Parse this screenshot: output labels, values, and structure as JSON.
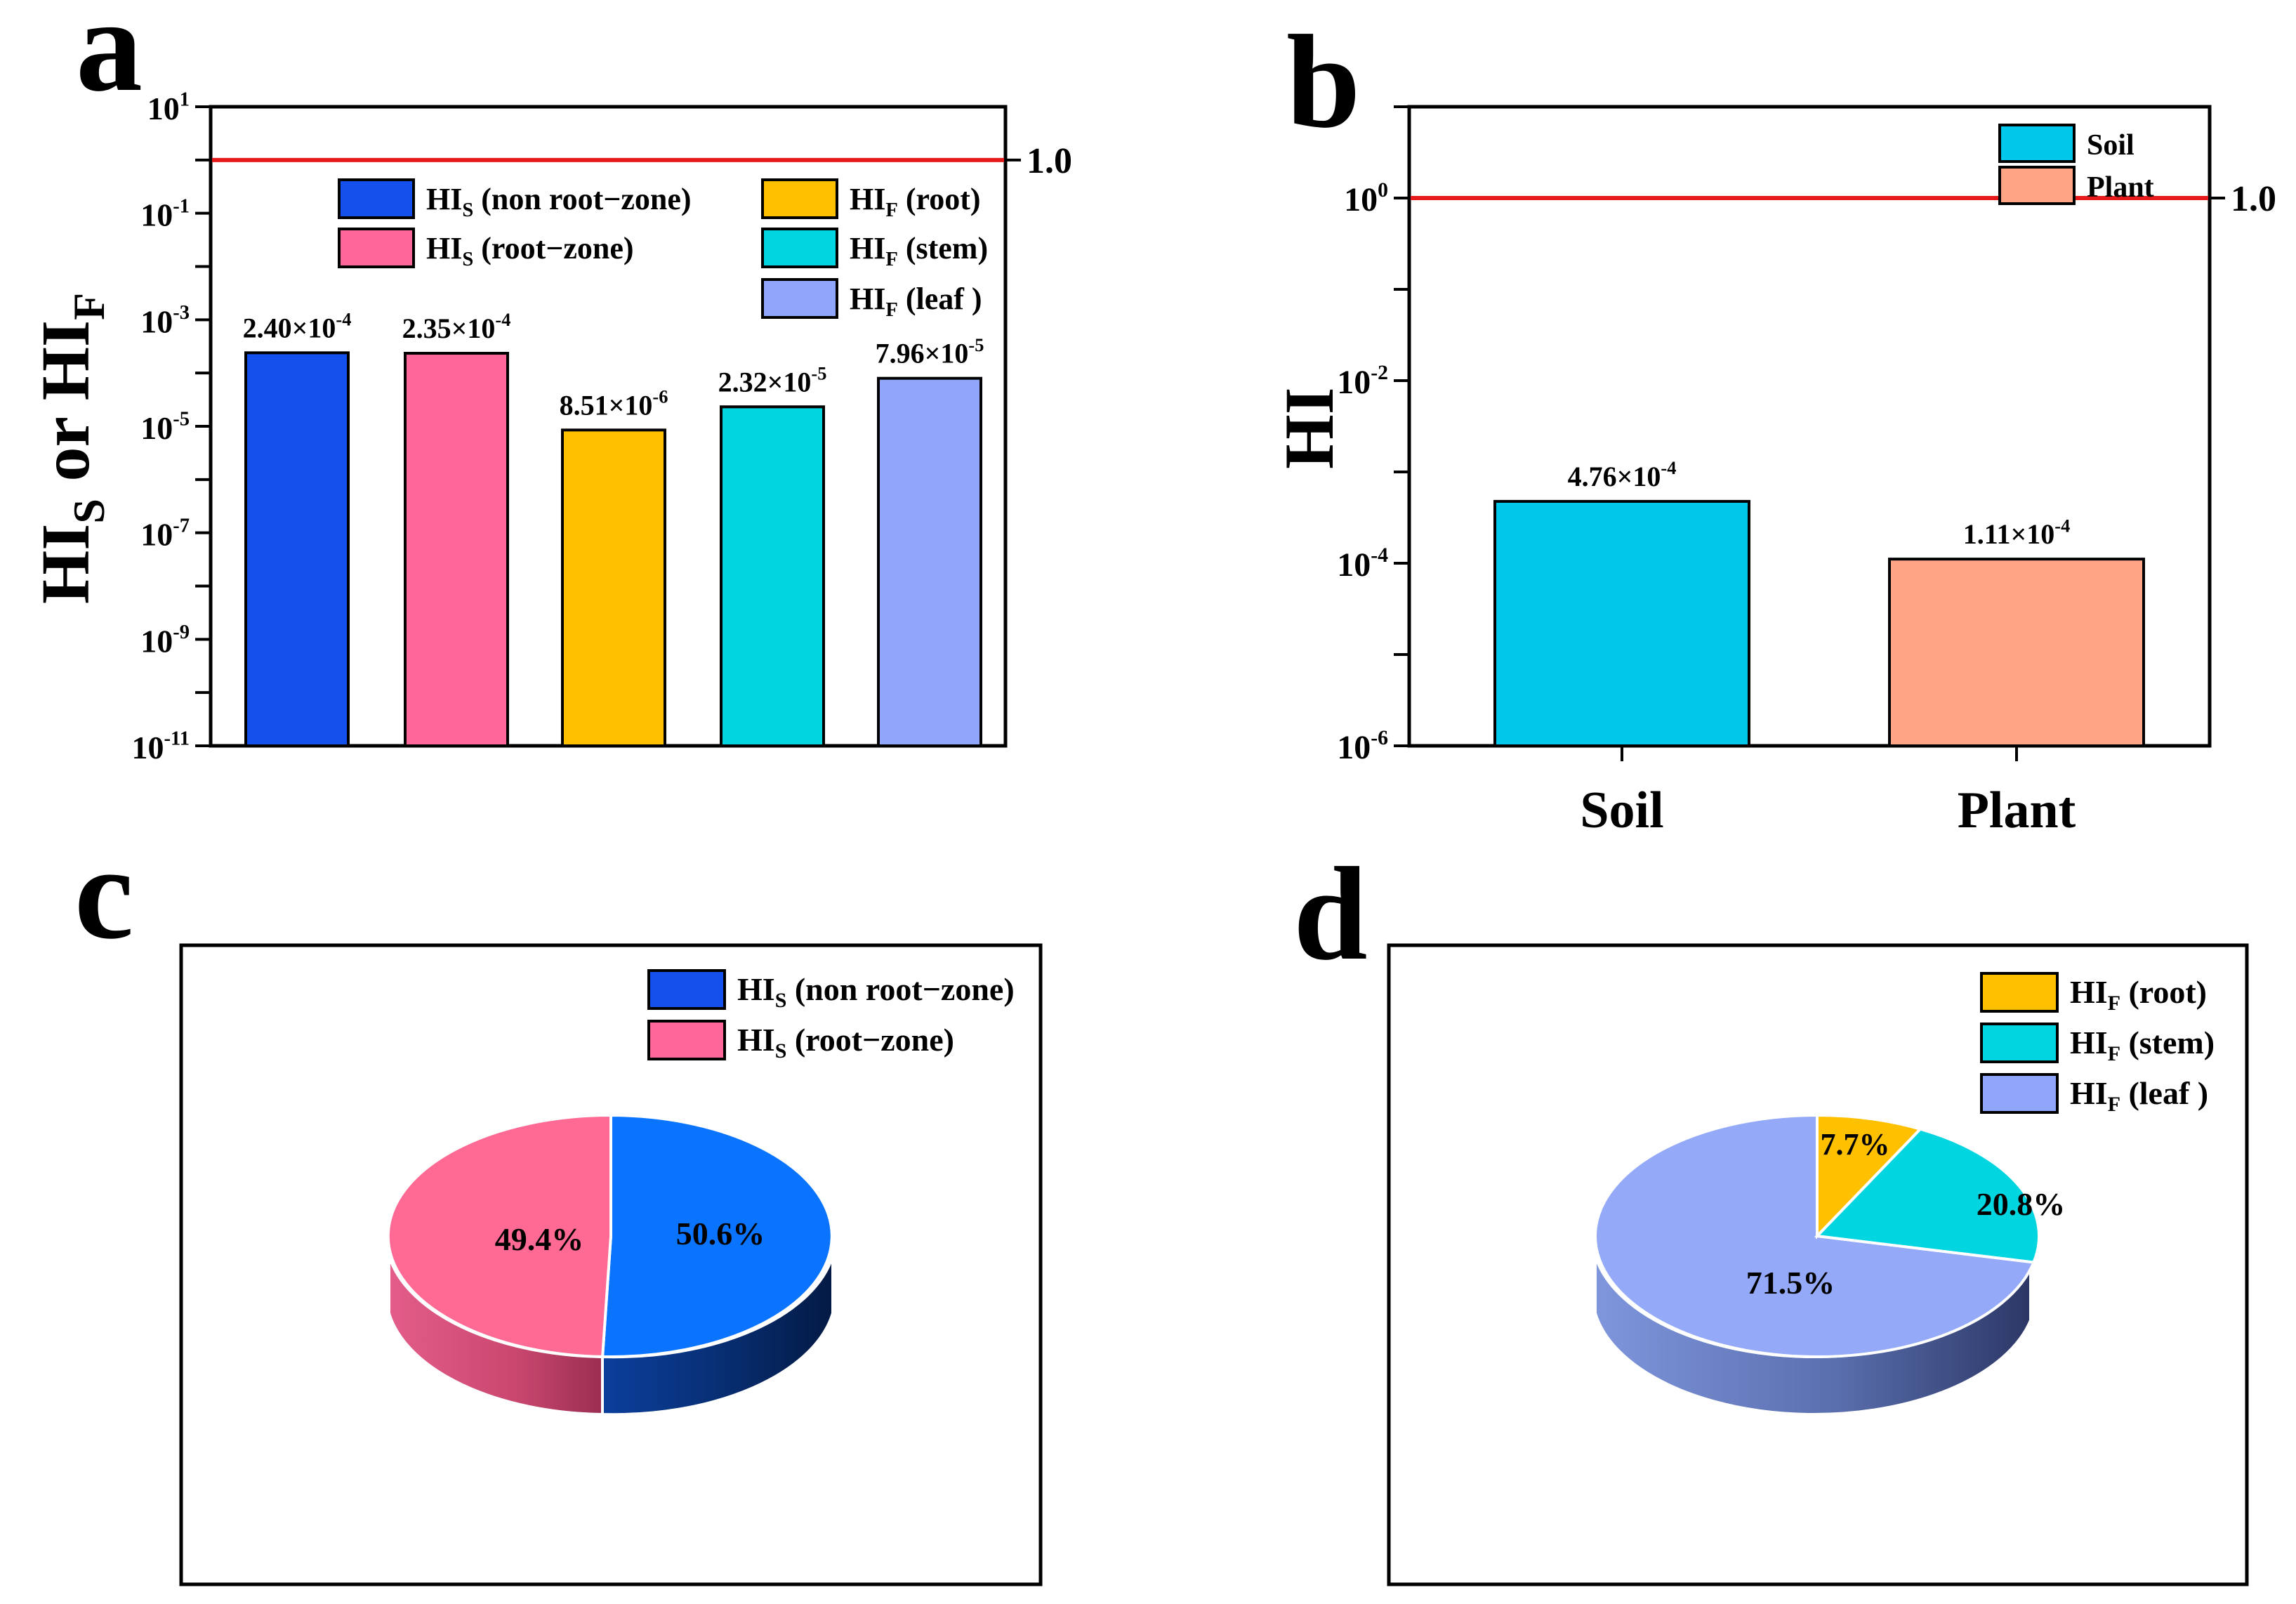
{
  "colors": {
    "hi_line": "#e51b1b",
    "hi_s_nonroot": "#1450ec",
    "hi_s_root": "#ff6699",
    "hi_f_root": "#ffc000",
    "hi_f_stem": "#00d5e0",
    "hi_f_leaf": "#8fa6fb",
    "soil": "#00c8ea",
    "plant": "#ffa586",
    "pie_nonroot": "#0a74ff",
    "pie_root": "#ff6a94",
    "pie_leaf_top": "#94aaf8"
  },
  "chart_data": [
    {
      "panel": "a",
      "type": "bar",
      "yscale": "log",
      "ylabel_main": "HI",
      "ylabel_sub1": "S",
      "ylabel_or": " or ",
      "ylabel_main2": "HI",
      "ylabel_sub2": "F",
      "ylim": [
        1e-11,
        10
      ],
      "yticks": [
        {
          "base": "10",
          "exp": "1"
        },
        {
          "base": "10",
          "exp": "-1"
        },
        {
          "base": "10",
          "exp": "-3"
        },
        {
          "base": "10",
          "exp": "-5"
        },
        {
          "base": "10",
          "exp": "-7"
        },
        {
          "base": "10",
          "exp": "-9"
        },
        {
          "base": "10",
          "exp": "-11"
        }
      ],
      "reference_line": {
        "value": 1.0,
        "label": "1.0"
      },
      "categories": [
        "HIS (non root-zone)",
        "HIS (root-zone)",
        "HIF (root)",
        "HIF (stem)",
        "HIF (leaf )"
      ],
      "values": [
        0.00024,
        0.000235,
        8.51e-06,
        2.32e-05,
        7.96e-05
      ],
      "bar_labels": [
        {
          "mant": "2.40×10",
          "exp": "-4"
        },
        {
          "mant": "2.35×10",
          "exp": "-4"
        },
        {
          "mant": "8.51×10",
          "exp": "-6"
        },
        {
          "mant": "2.32×10",
          "exp": "-5"
        },
        {
          "mant": "7.96×10",
          "exp": "-5"
        }
      ],
      "legend": [
        {
          "main": "HI",
          "sub": "S",
          "rest": " (non root−zone)"
        },
        {
          "main": "HI",
          "sub": "S",
          "rest": " (root−zone)"
        },
        {
          "main": "HI",
          "sub": "F",
          "rest": " (root)"
        },
        {
          "main": "HI",
          "sub": "F",
          "rest": " (stem)"
        },
        {
          "main": "HI",
          "sub": "F",
          "rest": " (leaf )"
        }
      ]
    },
    {
      "panel": "b",
      "type": "bar",
      "yscale": "log",
      "ylabel": "HI",
      "ylim": [
        1e-06,
        10
      ],
      "yticks": [
        {
          "base": "10",
          "exp": "0"
        },
        {
          "base": "10",
          "exp": "-2"
        },
        {
          "base": "10",
          "exp": "-4"
        },
        {
          "base": "10",
          "exp": "-6"
        }
      ],
      "reference_line": {
        "value": 1.0,
        "label": "1.0"
      },
      "categories": [
        "Soil",
        "Plant"
      ],
      "values": [
        0.000476,
        0.000111
      ],
      "bar_labels": [
        {
          "mant": "4.76×10",
          "exp": "-4"
        },
        {
          "mant": "1.11×10",
          "exp": "-4"
        }
      ],
      "legend": [
        "Soil",
        "Plant"
      ]
    },
    {
      "panel": "c",
      "type": "pie",
      "style": "3d",
      "labels": [
        "HIS (non root-zone)",
        "HIS (root-zone)"
      ],
      "values": [
        50.6,
        49.4
      ],
      "value_labels": [
        "50.6%",
        "49.4%"
      ],
      "legend": [
        {
          "main": "HI",
          "sub": "S",
          "rest": " (non root−zone)"
        },
        {
          "main": "HI",
          "sub": "S",
          "rest": " (root−zone)"
        }
      ]
    },
    {
      "panel": "d",
      "type": "pie",
      "style": "3d",
      "labels": [
        "HIF (root)",
        "HIF (stem)",
        "HIF (leaf )"
      ],
      "values": [
        7.7,
        20.8,
        71.5
      ],
      "value_labels": [
        "7.7%",
        "20.8%",
        "71.5%"
      ],
      "legend": [
        {
          "main": "HI",
          "sub": "F",
          "rest": " (root)"
        },
        {
          "main": "HI",
          "sub": "F",
          "rest": " (stem)"
        },
        {
          "main": "HI",
          "sub": "F",
          "rest": " (leaf )"
        }
      ]
    }
  ],
  "panels": {
    "a": {
      "letter": "a"
    },
    "b": {
      "letter": "b"
    },
    "c": {
      "letter": "c"
    },
    "d": {
      "letter": "d"
    }
  }
}
